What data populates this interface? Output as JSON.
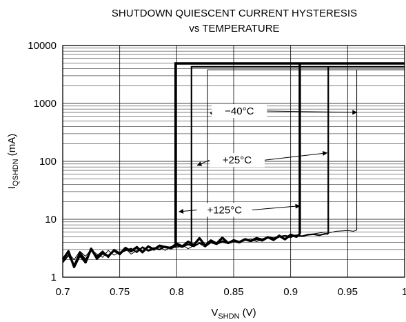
{
  "chart_data": {
    "type": "line",
    "title_lines": [
      "SHUTDOWN QUIESCENT CURRENT HYSTERESIS",
      "vs TEMPERATURE"
    ],
    "xlabel_main": "V",
    "xlabel_sub": "SHDN",
    "xlabel_unit": " (V)",
    "ylabel_main": "I",
    "ylabel_sub": "QSHDN",
    "ylabel_unit": " (mA)",
    "xlim": [
      0.7,
      1.0
    ],
    "ylim": [
      1,
      10000
    ],
    "yscale": "log",
    "grid": true,
    "x_ticks": [
      0.7,
      0.75,
      0.8,
      0.85,
      0.9,
      0.95,
      1
    ],
    "x_tick_labels": [
      "0.7",
      "0.75",
      "0.8",
      "0.85",
      "0.9",
      "0.95",
      "1"
    ],
    "y_ticks": [
      1,
      10,
      100,
      1000,
      10000
    ],
    "y_tick_labels": [
      "1",
      "10",
      "100",
      "1000",
      "10000"
    ],
    "series": [
      {
        "label": "−40°C",
        "weight": "thin",
        "hysteresis": {
          "rise_threshold": 0.827,
          "fall_threshold": 0.958,
          "high_level": 3800
        },
        "low_x": [
          0.7,
          0.705,
          0.71,
          0.715,
          0.72,
          0.725,
          0.73,
          0.735,
          0.74,
          0.745,
          0.75,
          0.755,
          0.76,
          0.765,
          0.77,
          0.775,
          0.78,
          0.785,
          0.79,
          0.795,
          0.8,
          0.805,
          0.81,
          0.815,
          0.82,
          0.825,
          0.83,
          0.835,
          0.84,
          0.845,
          0.85,
          0.855,
          0.86,
          0.865,
          0.87,
          0.875,
          0.88,
          0.885,
          0.89,
          0.895,
          0.9,
          0.905,
          0.91,
          0.915,
          0.92,
          0.925,
          0.93,
          0.935,
          0.94,
          0.945,
          0.95,
          0.955,
          0.958
        ],
        "low_y": [
          2.2,
          2.6,
          2.0,
          2.8,
          2.3,
          3.0,
          2.5,
          2.2,
          2.9,
          2.4,
          2.7,
          3.1,
          2.5,
          2.9,
          3.2,
          2.8,
          3.0,
          3.3,
          2.9,
          3.4,
          3.2,
          3.6,
          3.1,
          3.5,
          3.8,
          3.3,
          3.9,
          3.7,
          4.0,
          3.8,
          4.2,
          3.9,
          4.3,
          4.6,
          4.1,
          4.5,
          4.8,
          4.4,
          4.9,
          5.1,
          4.8,
          5.3,
          5.0,
          5.5,
          5.6,
          5.8,
          6.0,
          5.9,
          6.2,
          6.3,
          6.4,
          6.2,
          6.5
        ]
      },
      {
        "label": "+25°C",
        "weight": "medium",
        "hysteresis": {
          "rise_threshold": 0.813,
          "fall_threshold": 0.933,
          "high_level": 4300
        },
        "low_x": [
          0.7,
          0.705,
          0.71,
          0.715,
          0.72,
          0.725,
          0.73,
          0.735,
          0.74,
          0.745,
          0.75,
          0.755,
          0.76,
          0.765,
          0.77,
          0.775,
          0.78,
          0.785,
          0.79,
          0.795,
          0.8,
          0.805,
          0.81,
          0.815,
          0.82,
          0.825,
          0.83,
          0.835,
          0.84,
          0.845,
          0.85,
          0.855,
          0.86,
          0.865,
          0.87,
          0.875,
          0.88,
          0.885,
          0.89,
          0.895,
          0.9,
          0.905,
          0.91,
          0.915,
          0.92,
          0.925,
          0.93,
          0.933
        ],
        "low_y": [
          1.8,
          2.4,
          1.6,
          2.7,
          2.0,
          2.9,
          2.3,
          2.8,
          2.2,
          3.0,
          2.6,
          2.9,
          3.1,
          2.7,
          3.3,
          2.9,
          3.2,
          3.0,
          3.4,
          3.1,
          3.5,
          3.3,
          3.7,
          3.4,
          3.9,
          3.6,
          4.0,
          3.7,
          4.2,
          3.9,
          4.4,
          4.1,
          4.6,
          4.3,
          4.8,
          4.5,
          4.9,
          4.7,
          5.0,
          5.2,
          5.0,
          5.3,
          5.1,
          5.4,
          5.5,
          5.3,
          5.6,
          5.6
        ]
      },
      {
        "label": "+125°C",
        "weight": "thick",
        "hysteresis": {
          "rise_threshold": 0.799,
          "fall_threshold": 0.908,
          "high_level": 4900
        },
        "low_x": [
          0.7,
          0.705,
          0.71,
          0.715,
          0.72,
          0.725,
          0.73,
          0.735,
          0.74,
          0.745,
          0.75,
          0.755,
          0.76,
          0.765,
          0.77,
          0.775,
          0.78,
          0.785,
          0.79,
          0.795,
          0.8,
          0.805,
          0.81,
          0.815,
          0.82,
          0.825,
          0.83,
          0.835,
          0.84,
          0.845,
          0.85,
          0.855,
          0.86,
          0.865,
          0.87,
          0.875,
          0.88,
          0.885,
          0.89,
          0.895,
          0.9,
          0.905,
          0.908
        ],
        "low_y": [
          2.0,
          2.8,
          1.5,
          2.4,
          1.8,
          3.1,
          2.1,
          2.6,
          2.3,
          2.9,
          2.5,
          3.2,
          2.8,
          3.3,
          2.7,
          3.4,
          3.0,
          3.5,
          3.3,
          3.2,
          3.8,
          3.4,
          4.1,
          3.6,
          4.7,
          3.5,
          4.3,
          3.8,
          4.8,
          3.9,
          4.2,
          4.0,
          4.5,
          4.2,
          4.6,
          4.3,
          4.9,
          4.4,
          5.2,
          4.5,
          5.4,
          5.0,
          5.5
        ]
      }
    ],
    "annotations": [
      {
        "text": "−40°C",
        "box_x": 0.855,
        "box_y": 740,
        "arrows": [
          [
            0.832,
            600
          ],
          [
            0.958,
            700
          ]
        ]
      },
      {
        "text": "+25°C",
        "box_x": 0.853,
        "box_y": 105,
        "arrows": [
          [
            0.818,
            85
          ],
          [
            0.932,
            140
          ]
        ]
      },
      {
        "text": "+125°C",
        "box_x": 0.842,
        "box_y": 14.5,
        "arrows": [
          [
            0.802,
            13.5
          ],
          [
            0.908,
            17
          ]
        ]
      }
    ]
  }
}
